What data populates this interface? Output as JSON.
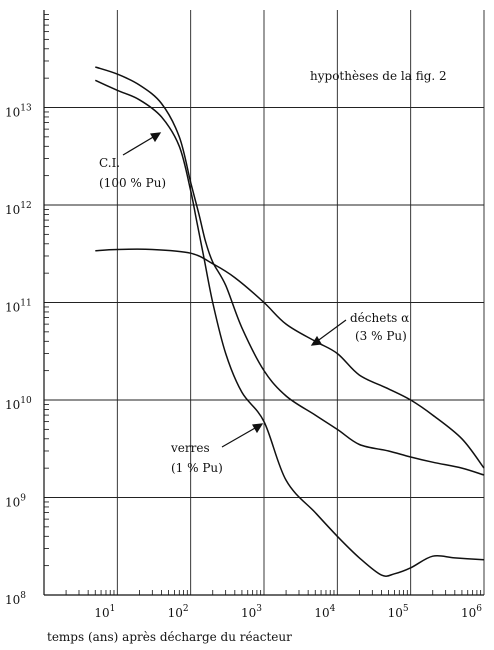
{
  "chart_data": {
    "type": "line",
    "title": "",
    "xlabel": "temps (ans) après décharge du réacteur",
    "ylabel": "",
    "xscale": "log",
    "yscale": "log",
    "xlim": [
      1,
      1000000
    ],
    "ylim": [
      100000000,
      100000000000000
    ],
    "grid": true,
    "x_ticks": [
      {
        "value": 10,
        "base": "10",
        "exp": "1"
      },
      {
        "value": 100,
        "base": "10",
        "exp": "2"
      },
      {
        "value": 1000,
        "base": "10",
        "exp": "3"
      },
      {
        "value": 10000,
        "base": "10",
        "exp": "4"
      },
      {
        "value": 100000,
        "base": "10",
        "exp": "5"
      },
      {
        "value": 1000000,
        "base": "10",
        "exp": "6"
      }
    ],
    "y_ticks": [
      {
        "value": 100000000,
        "base": "10",
        "exp": "8"
      },
      {
        "value": 1000000000,
        "base": "10",
        "exp": "9"
      },
      {
        "value": 10000000000,
        "base": "10",
        "exp": "10"
      },
      {
        "value": 100000000000,
        "base": "10",
        "exp": "11"
      },
      {
        "value": 1000000000000,
        "base": "10",
        "exp": "12"
      },
      {
        "value": 10000000000000,
        "base": "10",
        "exp": "13"
      }
    ],
    "series": [
      {
        "id": "ci",
        "label_lines": [
          "C.I.",
          "(100 % Pu)"
        ],
        "x": [
          5,
          10,
          20,
          40,
          70,
          100,
          130,
          160,
          200,
          300,
          500,
          1000,
          2000,
          5000,
          10000,
          20000,
          50000,
          100000,
          200000,
          500000,
          1000000
        ],
        "y": [
          26000000000000,
          22000000000000,
          17000000000000,
          11000000000000,
          5000000000000,
          1700000000000,
          800000000000,
          420000000000,
          260000000000,
          150000000000,
          55000000000,
          20000000000,
          11000000000,
          7000000000,
          5000000000,
          3500000000,
          3000000000,
          2600000000,
          2300000000,
          2000000000,
          1700000000
        ]
      },
      {
        "id": "verres",
        "label_lines": [
          "verres",
          "(1 % Pu)"
        ],
        "x": [
          5,
          10,
          20,
          40,
          70,
          100,
          120,
          150,
          200,
          300,
          500,
          1000,
          2000,
          5000,
          10000,
          20000,
          40000,
          60000,
          100000,
          200000,
          400000,
          1000000
        ],
        "y": [
          19000000000000,
          15000000000000,
          12000000000000,
          8000000000000,
          4000000000000,
          1400000000000,
          700000000000,
          300000000000,
          100000000000,
          30000000000,
          12000000000,
          6000000000,
          1500000000,
          700000000,
          400000000,
          240000000,
          160000000,
          165000000,
          190000000,
          250000000,
          240000000,
          230000000
        ]
      },
      {
        "id": "dechets",
        "label_lines": [
          "déchets α",
          "(3 % Pu)"
        ],
        "x": [
          5,
          10,
          30,
          100,
          200,
          400,
          1000,
          2000,
          5000,
          10000,
          20000,
          50000,
          100000,
          200000,
          500000,
          1000000
        ],
        "y": [
          340000000000,
          350000000000,
          350000000000,
          320000000000,
          250000000000,
          180000000000,
          100000000000,
          60000000000,
          40000000000,
          30000000000,
          18000000000,
          13000000000,
          10000000000,
          7000000000,
          4000000000,
          2000000000
        ]
      }
    ],
    "annotations": [
      {
        "id": "hypotheses",
        "text": "hypothèses de la fig. 2"
      }
    ]
  }
}
